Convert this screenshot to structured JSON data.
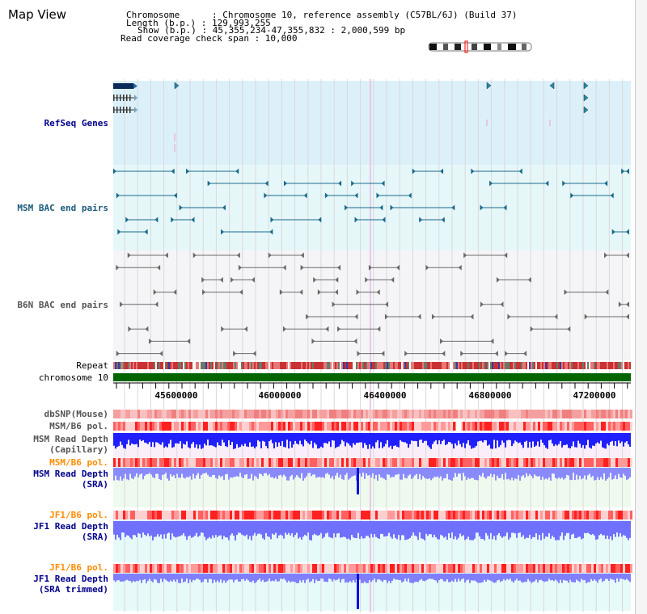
{
  "header": {
    "title": "Map View",
    "info_lines": [
      "Chromosome      : Chromosome 10, reference assembly (C57BL/6J) (Build 37)",
      "Length (b.p.) : 129,993,255",
      "Show (b.p.) : 45,355,234-47,355,832 : 2,000,599 bp",
      "Read coverage check span : 10,000"
    ]
  },
  "colors": {
    "gene_band": "#dcf0fa",
    "msm_band": "#e6f7fa",
    "b6n_band": "#f5f5f7",
    "msm_text": "#1a5a7a",
    "label_navy": "#00008b",
    "label_orange": "#ff8c00",
    "chromosome": "#006400",
    "depth_blue": "#2020ff",
    "depth_light": "#7f7fff"
  },
  "tracks": {
    "refseq": "RefSeq Genes",
    "msm_bac": "MSM BAC end pairs",
    "b6n_bac": "B6N BAC end pairs",
    "repeat": "Repeat",
    "chromosome": "chromosome 10",
    "dbsnp": "dbSNP(Mouse)",
    "msm_b6_pol": "MSM/B6 pol.",
    "msm_depth_cap_1": "MSM Read Depth",
    "msm_depth_cap_2": "(Capillary)",
    "msm_b6_pol_sra": "MSM/B6 pol.",
    "msm_depth_sra_1": "MSM Read Depth",
    "msm_depth_sra_2": "(SRA)",
    "jf1_b6_pol": "JF1/B6 pol.",
    "jf1_depth_1": "JF1 Read Depth",
    "jf1_depth_2": "(SRA)",
    "jf1_b6_pol_trim": "JF1/B6 pol.",
    "jf1_depth_trim_1": "JF1 Read Depth",
    "jf1_depth_trim_2": "(SRA trimmed)"
  },
  "axis": {
    "ticks": [
      {
        "value": 45600000,
        "label": "45600000"
      },
      {
        "value": 46000000,
        "label": "46000000"
      },
      {
        "value": 46400000,
        "label": "46400000"
      },
      {
        "value": 46800000,
        "label": "46800000"
      },
      {
        "value": 47200000,
        "label": "47200000"
      }
    ]
  }
}
